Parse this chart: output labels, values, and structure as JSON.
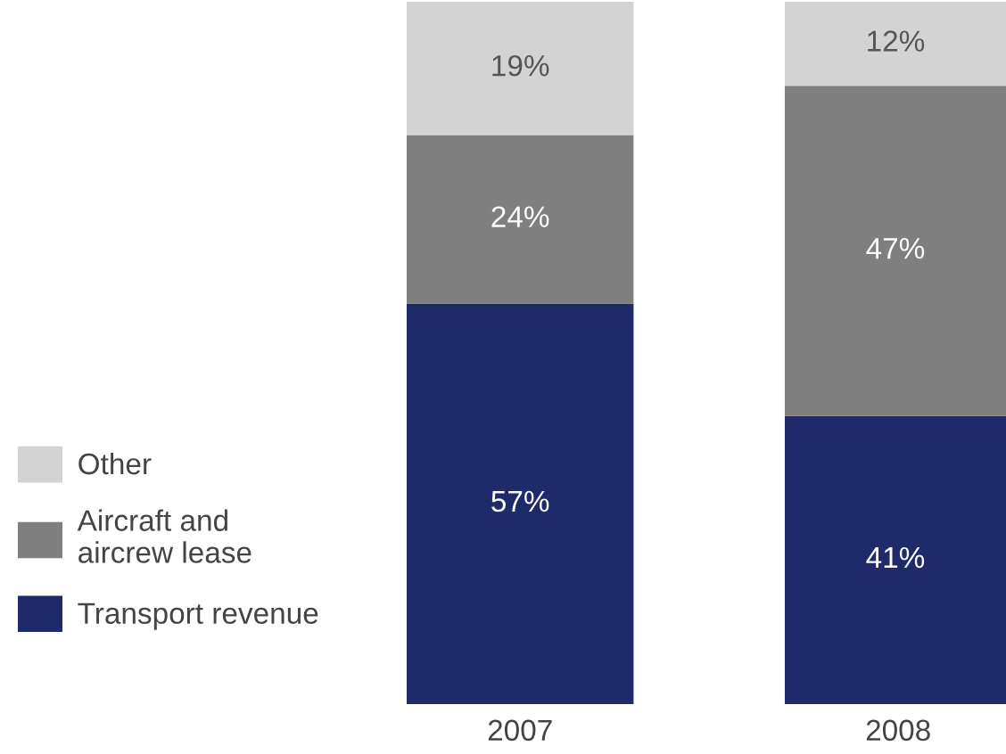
{
  "chart_data": {
    "type": "bar",
    "stacked": true,
    "data_labels": true,
    "legend": "left",
    "grid": false,
    "categories": [
      "2007",
      "2008"
    ],
    "series": [
      {
        "name": "Transport revenue",
        "color": "#1f2a6b",
        "values": [
          57,
          41
        ],
        "value_labels": [
          "57%",
          "41%"
        ]
      },
      {
        "name": "Aircraft and\naircrew lease",
        "color": "#7f7f7f",
        "values": [
          24,
          47
        ],
        "value_labels": [
          "24%",
          "47%"
        ]
      },
      {
        "name": "Other",
        "color": "#d3d3d3",
        "values": [
          19,
          12
        ],
        "value_labels": [
          "19%",
          "12%"
        ]
      }
    ]
  }
}
